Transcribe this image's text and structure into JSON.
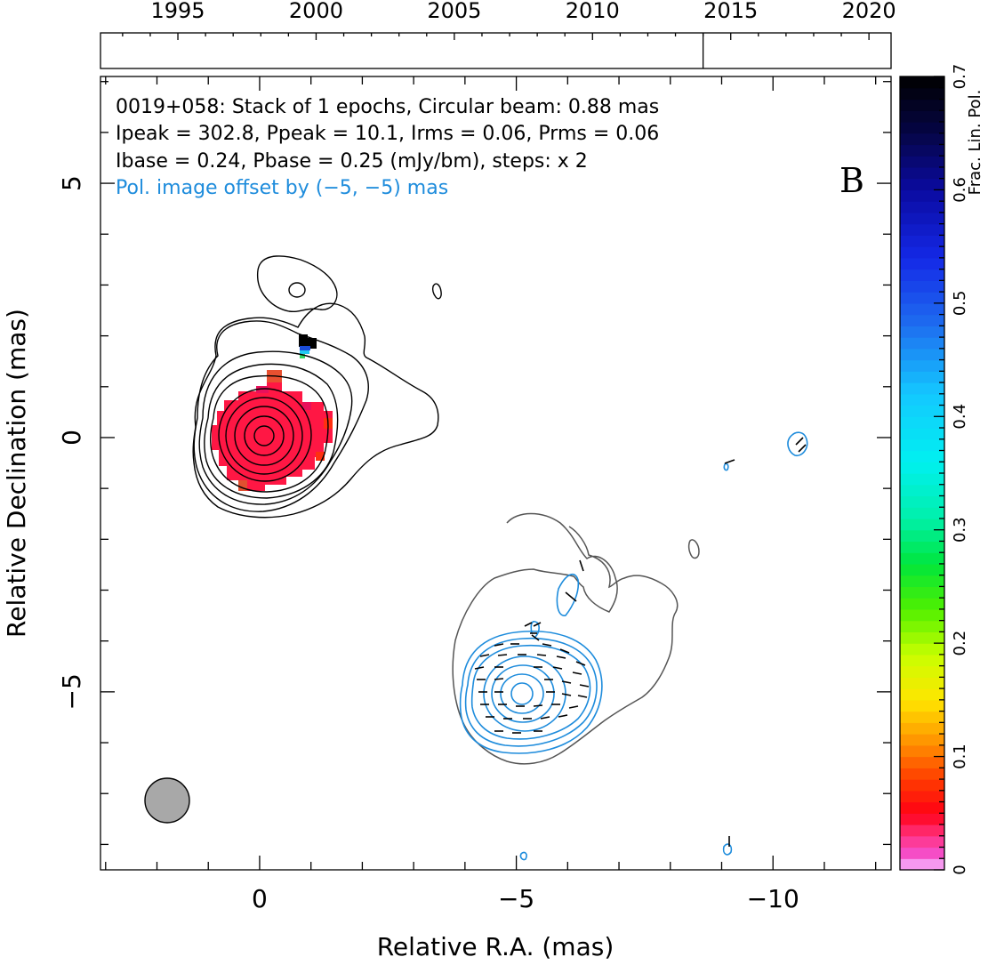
{
  "chart_data": {
    "type": "contour",
    "timeline": {
      "tick_labels": [
        "1995",
        "2000",
        "2005",
        "2010",
        "2015",
        "2020"
      ],
      "tick_years": [
        1995,
        2000,
        2005,
        2010,
        2015,
        2020
      ],
      "range": [
        1992.2,
        2020.8
      ],
      "epoch_marks": [
        2014.0
      ]
    },
    "title_lines": [
      "0019+058: Stack of 1 epochs, Circular beam: 0.88 mas",
      "Ipeak = 302.8, Ppeak = 10.1, Irms = 0.06, Prms = 0.06",
      "Ibase = 0.24, Pbase = 0.25 (mJy/bm), steps: x 2"
    ],
    "pol_offset_note": "Pol. image offset by (−5, −5) mas",
    "panel_letter": "B",
    "xlabel": "Relative R.A. (mas)",
    "ylabel": "Relative Declination (mas)",
    "xlim": [
      3.1,
      -12.3
    ],
    "ylim": [
      -8.5,
      7.1
    ],
    "x_ticks": [
      0,
      -5,
      -10
    ],
    "x_tick_labels": [
      "0",
      "−5",
      "−10"
    ],
    "y_ticks": [
      -5,
      0,
      5
    ],
    "y_tick_labels": [
      "−5",
      "0",
      "5"
    ],
    "beam": {
      "x": 1.9,
      "y": -7.1,
      "diameter_mas": 0.88
    },
    "total_intensity_peak": {
      "x": 0,
      "y": 0
    },
    "polarized_image_center": {
      "x": -5,
      "y": -5
    },
    "colorbar": {
      "label": "Frac. Lin. Pol.",
      "range": [
        0,
        0.7
      ],
      "tick_values": [
        0,
        0.1,
        0.2,
        0.3,
        0.4,
        0.5,
        0.6,
        0.7
      ],
      "tick_labels": [
        "0",
        "0.1",
        "0.2",
        "0.3",
        "0.4",
        "0.5",
        "0.6",
        "0.7"
      ]
    },
    "colors": {
      "stokes_i_contours": "#000000",
      "outer_i_contour": "#555555",
      "pol_contours": "#1e8cdc",
      "beam_fill": "#a8a8a8",
      "fractional_pol_main": "#ff1744"
    }
  }
}
